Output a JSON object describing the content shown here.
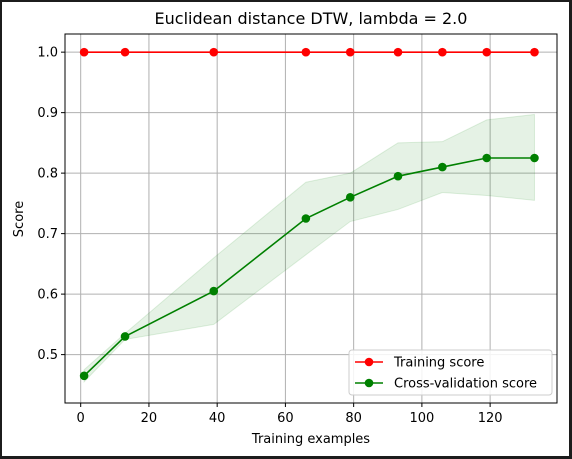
{
  "chart_data": {
    "type": "line",
    "title": "Euclidean distance DTW, lambda = 2.0",
    "xlabel": "Training examples",
    "ylabel": "Score",
    "xlim": [
      -4.6,
      139.6
    ],
    "ylim": [
      0.42,
      1.03
    ],
    "xticks": [
      0,
      20,
      40,
      60,
      80,
      100,
      120
    ],
    "yticks": [
      0.5,
      0.6,
      0.7,
      0.8,
      0.9,
      1.0
    ],
    "grid": true,
    "legend_position": "lower-right",
    "x": [
      1,
      13,
      39,
      66,
      79,
      93,
      106,
      119,
      133
    ],
    "series": [
      {
        "name": "Training score",
        "color": "#ff0000",
        "values": [
          1.0,
          1.0,
          1.0,
          1.0,
          1.0,
          1.0,
          1.0,
          1.0,
          1.0
        ],
        "band_lower": [
          1.0,
          1.0,
          1.0,
          1.0,
          1.0,
          1.0,
          1.0,
          1.0,
          1.0
        ],
        "band_upper": [
          1.0,
          1.0,
          1.0,
          1.0,
          1.0,
          1.0,
          1.0,
          1.0,
          1.0
        ]
      },
      {
        "name": "Cross-validation score",
        "color": "#008000",
        "values": [
          0.465,
          0.53,
          0.605,
          0.725,
          0.76,
          0.795,
          0.81,
          0.825,
          0.825
        ],
        "band_lower": [
          0.455,
          0.525,
          0.55,
          0.665,
          0.72,
          0.74,
          0.768,
          0.763,
          0.755
        ],
        "band_upper": [
          0.475,
          0.535,
          0.66,
          0.785,
          0.8,
          0.85,
          0.852,
          0.888,
          0.897
        ]
      }
    ]
  }
}
